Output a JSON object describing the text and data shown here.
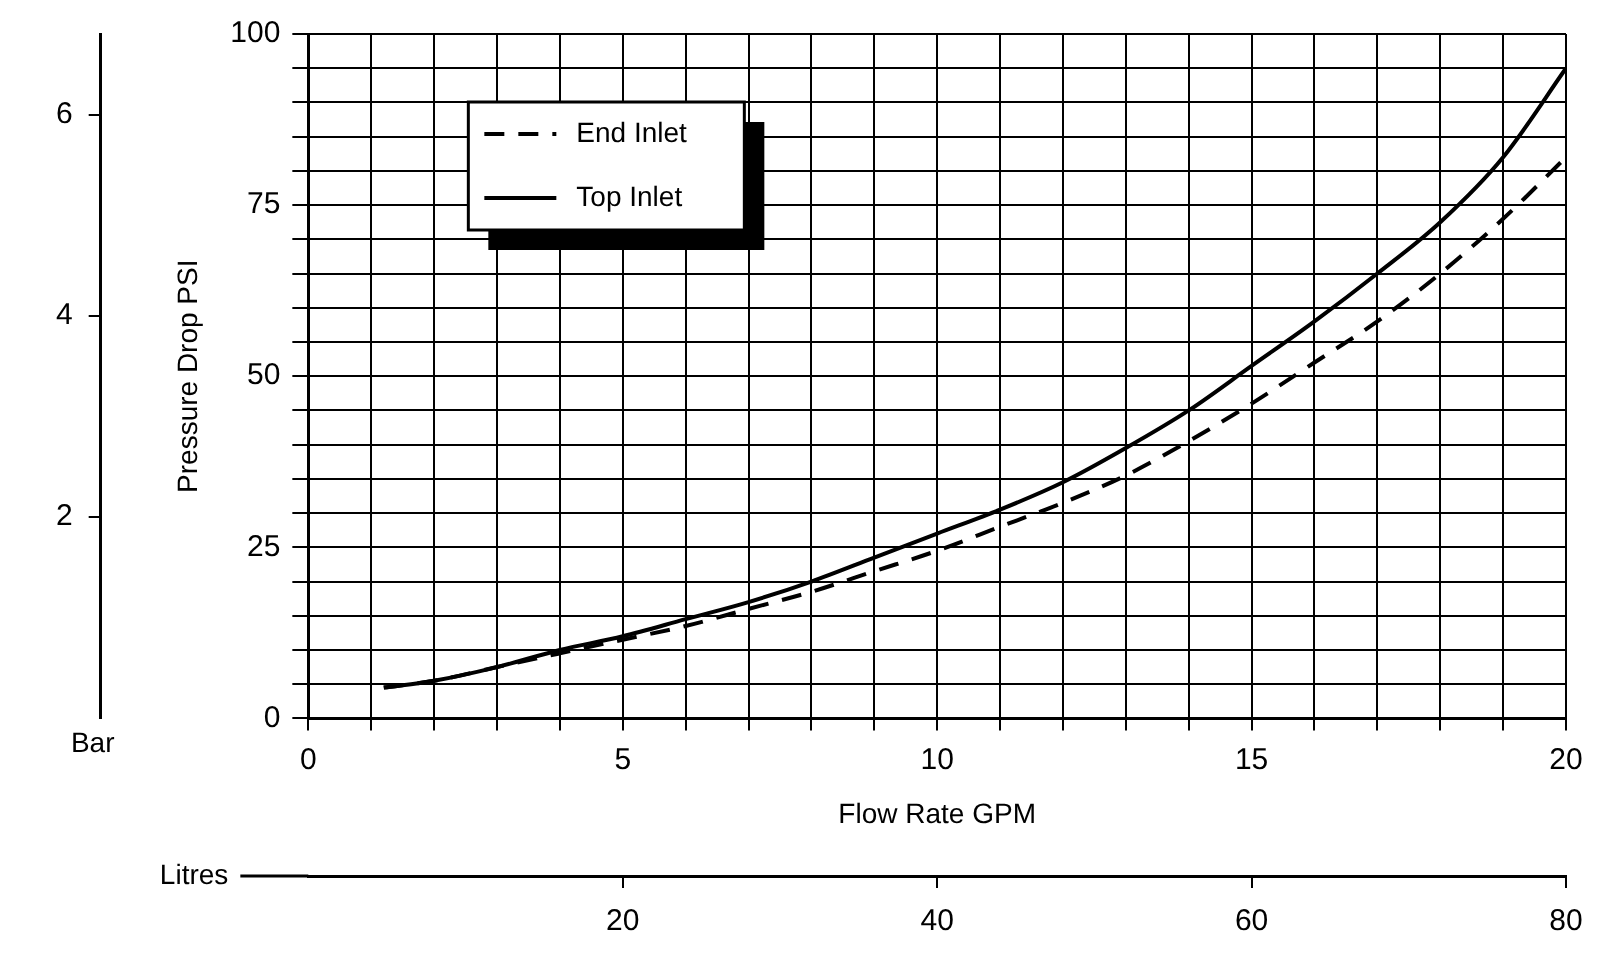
{
  "chart_data": {
    "type": "line",
    "xlabel": "Flow Rate GPM",
    "ylabel": "Pressure Drop PSI",
    "y2label": "Bar",
    "x2label": "Litres",
    "x": [
      1.2,
      2,
      3,
      4,
      5,
      6,
      7,
      8,
      9,
      10,
      11,
      12,
      13,
      14,
      15,
      16,
      17,
      18,
      19,
      20
    ],
    "series": [
      {
        "name": "End Inlet",
        "color": "#000000",
        "line_style": "dashed",
        "values": [
          4.5,
          5.5,
          7.5,
          9.5,
          11.5,
          13.5,
          16,
          18.5,
          21.5,
          24.5,
          28,
          31.5,
          35.5,
          40.5,
          46,
          52,
          58,
          65,
          73,
          82
        ]
      },
      {
        "name": "Top Inlet",
        "color": "#000000",
        "line_style": "solid",
        "values": [
          4.5,
          5.5,
          7.5,
          10,
          12,
          14.5,
          17,
          20,
          23.5,
          27,
          30.5,
          34.5,
          39.5,
          45,
          51.5,
          58,
          65,
          72.5,
          82,
          95
        ]
      }
    ],
    "xlim": [
      0,
      20
    ],
    "xticks": [
      0,
      {
        "value": 1,
        "label": null
      },
      {
        "value": 2,
        "label": null
      },
      {
        "value": 3,
        "label": null
      },
      {
        "value": 4,
        "label": null
      },
      5,
      {
        "value": 6,
        "label": null
      },
      {
        "value": 7,
        "label": null
      },
      {
        "value": 8,
        "label": null
      },
      {
        "value": 9,
        "label": null
      },
      10,
      {
        "value": 11,
        "label": null
      },
      {
        "value": 12,
        "label": null
      },
      {
        "value": 13,
        "label": null
      },
      {
        "value": 14,
        "label": null
      },
      15,
      {
        "value": 16,
        "label": null
      },
      {
        "value": 17,
        "label": null
      },
      {
        "value": 18,
        "label": null
      },
      {
        "value": 19,
        "label": null
      },
      20
    ],
    "ylim": [
      0,
      100
    ],
    "yticks": [
      0,
      {
        "value": 5,
        "label": null
      },
      {
        "value": 10,
        "label": null
      },
      {
        "value": 15,
        "label": null
      },
      {
        "value": 20,
        "label": null
      },
      25,
      {
        "value": 30,
        "label": null
      },
      {
        "value": 35,
        "label": null
      },
      {
        "value": 40,
        "label": null
      },
      {
        "value": 45,
        "label": null
      },
      50,
      {
        "value": 55,
        "label": null
      },
      {
        "value": 60,
        "label": null
      },
      {
        "value": 65,
        "label": null
      },
      {
        "value": 70,
        "label": null
      },
      75,
      {
        "value": 80,
        "label": null
      },
      {
        "value": 85,
        "label": null
      },
      {
        "value": 90,
        "label": null
      },
      {
        "value": 95,
        "label": null
      },
      100
    ],
    "y2lim": [
      0,
      6.8
    ],
    "y2ticks": [
      2,
      4,
      6
    ],
    "x2lim": [
      0,
      80
    ],
    "x2ticks": [
      20,
      40,
      60,
      80
    ],
    "grid": true,
    "legend": "top left",
    "marker": "none"
  }
}
